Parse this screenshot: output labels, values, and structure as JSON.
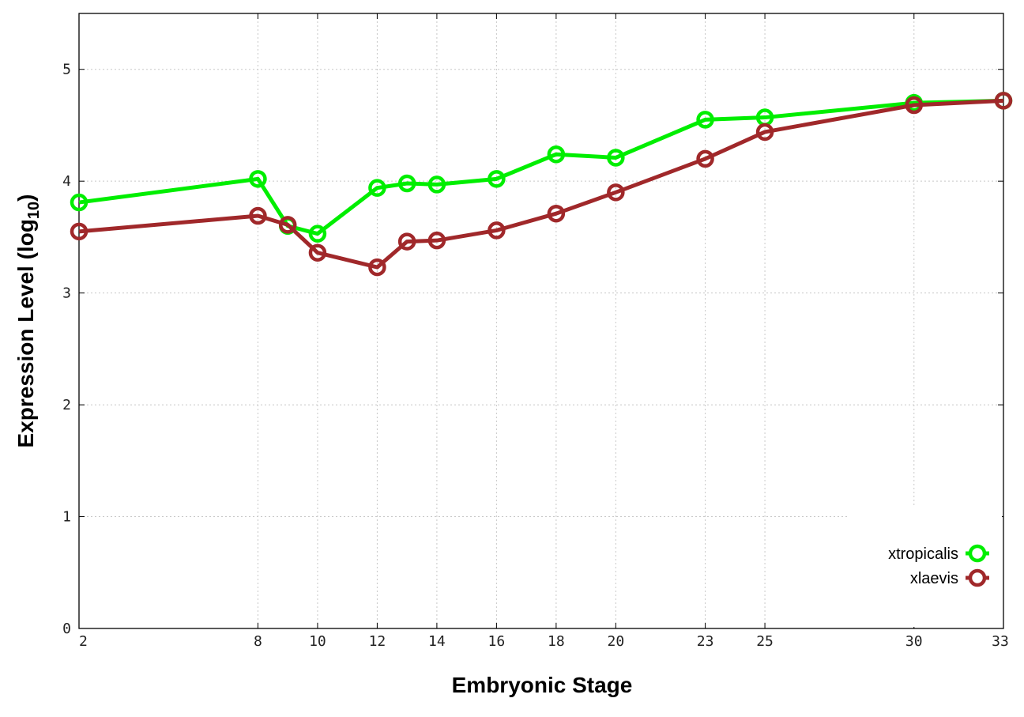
{
  "chart_data": {
    "type": "line",
    "xlabel": "Embryonic Stage",
    "ylabel_main": "Expression Level (log",
    "ylabel_sub": "10",
    "ylabel_close": ")",
    "x_ticks": [
      "2",
      "8",
      "10",
      "12",
      "14",
      "16",
      "18",
      "20",
      "23",
      "25",
      "30",
      "33"
    ],
    "y_ticks": [
      "0",
      "1",
      "2",
      "3",
      "4",
      "5"
    ],
    "ylim": [
      0,
      5.5
    ],
    "grid": true,
    "legend_position": "bottom-right",
    "series": [
      {
        "name": "xtropicalis",
        "color": "#00ee00",
        "points": [
          {
            "x": 2,
            "y": 3.81
          },
          {
            "x": 8,
            "y": 4.02
          },
          {
            "x": 9,
            "y": 3.6
          },
          {
            "x": 10,
            "y": 3.53
          },
          {
            "x": 12,
            "y": 3.94
          },
          {
            "x": 13,
            "y": 3.98
          },
          {
            "x": 14,
            "y": 3.97
          },
          {
            "x": 16,
            "y": 4.02
          },
          {
            "x": 18,
            "y": 4.24
          },
          {
            "x": 20,
            "y": 4.21
          },
          {
            "x": 23,
            "y": 4.55
          },
          {
            "x": 25,
            "y": 4.57
          },
          {
            "x": 30,
            "y": 4.7
          },
          {
            "x": 33,
            "y": 4.72
          }
        ]
      },
      {
        "name": "xlaevis",
        "color": "#a0282a",
        "points": [
          {
            "x": 2,
            "y": 3.55
          },
          {
            "x": 8,
            "y": 3.69
          },
          {
            "x": 9,
            "y": 3.61
          },
          {
            "x": 10,
            "y": 3.36
          },
          {
            "x": 12,
            "y": 3.23
          },
          {
            "x": 13,
            "y": 3.46
          },
          {
            "x": 14,
            "y": 3.47
          },
          {
            "x": 16,
            "y": 3.56
          },
          {
            "x": 18,
            "y": 3.71
          },
          {
            "x": 20,
            "y": 3.9
          },
          {
            "x": 23,
            "y": 4.2
          },
          {
            "x": 25,
            "y": 4.44
          },
          {
            "x": 30,
            "y": 4.68
          },
          {
            "x": 33,
            "y": 4.72
          }
        ]
      }
    ]
  }
}
